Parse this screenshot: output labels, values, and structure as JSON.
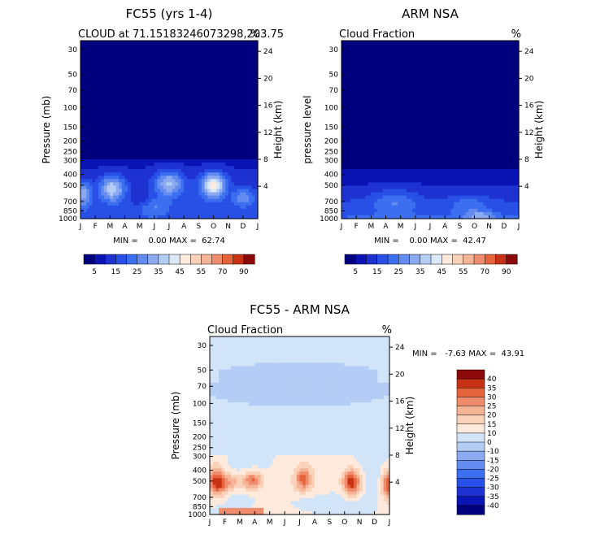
{
  "chart_data": [
    {
      "type": "heatmap",
      "title": "FC55 (yrs 1-4)",
      "subtitle_left": "CLOUD at 71.15183246073298,203.75",
      "subtitle_right": "%",
      "ylabel": "Pressure (mb)",
      "ylabel_right": "Height (km)",
      "months": [
        "J",
        "F",
        "M",
        "A",
        "M",
        "J",
        "J",
        "A",
        "S",
        "O",
        "N",
        "D",
        "J"
      ],
      "pressure_ticks": [
        "30",
        "50",
        "70",
        "100",
        "150",
        "200",
        "250",
        "300",
        "400",
        "500",
        "700",
        "850",
        "1000"
      ],
      "height_ticks": [
        "24",
        "20",
        "16",
        "12",
        "8",
        "4"
      ],
      "stats": "MIN =    0.00 MAX =  62.74",
      "min": 0.0,
      "max": 62.74,
      "colorbar_labels": [
        "5",
        "15",
        "25",
        "35",
        "45",
        "55",
        "70",
        "90"
      ]
    },
    {
      "type": "heatmap",
      "title": "ARM NSA",
      "subtitle_left": "Cloud Fraction",
      "subtitle_right": "%",
      "ylabel": "pressure level",
      "ylabel_right": "Height (km)",
      "months": [
        "J",
        "F",
        "M",
        "A",
        "M",
        "J",
        "J",
        "A",
        "S",
        "O",
        "N",
        "D",
        "J"
      ],
      "pressure_ticks": [
        "30",
        "50",
        "70",
        "100",
        "150",
        "200",
        "250",
        "300",
        "400",
        "500",
        "700",
        "850",
        "1000"
      ],
      "height_ticks": [
        "24",
        "20",
        "16",
        "12",
        "8",
        "4"
      ],
      "stats": "MIN =    0.00 MAX =  42.47",
      "min": 0.0,
      "max": 42.47,
      "colorbar_labels": [
        "5",
        "15",
        "25",
        "35",
        "45",
        "55",
        "70",
        "90"
      ]
    },
    {
      "type": "heatmap",
      "title": "FC55 - ARM NSA",
      "subtitle_left": "Cloud Fraction",
      "subtitle_right": "%",
      "ylabel": "Pressure (mb)",
      "ylabel_right": "Height (km)",
      "months": [
        "J",
        "F",
        "M",
        "A",
        "M",
        "J",
        "J",
        "A",
        "S",
        "O",
        "N",
        "D",
        "J"
      ],
      "pressure_ticks": [
        "30",
        "50",
        "70",
        "100",
        "150",
        "200",
        "250",
        "300",
        "400",
        "500",
        "700",
        "850",
        "1000"
      ],
      "height_ticks": [
        "24",
        "20",
        "16",
        "12",
        "8",
        "4"
      ],
      "stats": "MIN =   -7.63 MAX =  43.91",
      "min": -7.63,
      "max": 43.91,
      "colorbar_labels": [
        "40",
        "35",
        "30",
        "25",
        "20",
        "15",
        "10",
        "0",
        "-10",
        "-15",
        "-20",
        "-25",
        "-30",
        "-35",
        "-40"
      ]
    }
  ],
  "colors": {
    "seq_scale": [
      "#00007f",
      "#0a14b4",
      "#1e32d2",
      "#2850e6",
      "#3c6ef0",
      "#648cf0",
      "#8caaf0",
      "#b4cdf5",
      "#dce8f5",
      "#fdeadc",
      "#fad2b9",
      "#f5b496",
      "#f08c6e",
      "#e6643c",
      "#c83214",
      "#8c0a0a"
    ],
    "div_scale": [
      "#00007f",
      "#0a14b4",
      "#1e32d2",
      "#2850e6",
      "#3c6ef0",
      "#648cf0",
      "#8caaf0",
      "#b4cdf5",
      "#d2e4f8",
      "#fdeadc",
      "#fad2b9",
      "#f5b496",
      "#f08c6e",
      "#e6643c",
      "#c83214",
      "#8c0a0a"
    ]
  }
}
